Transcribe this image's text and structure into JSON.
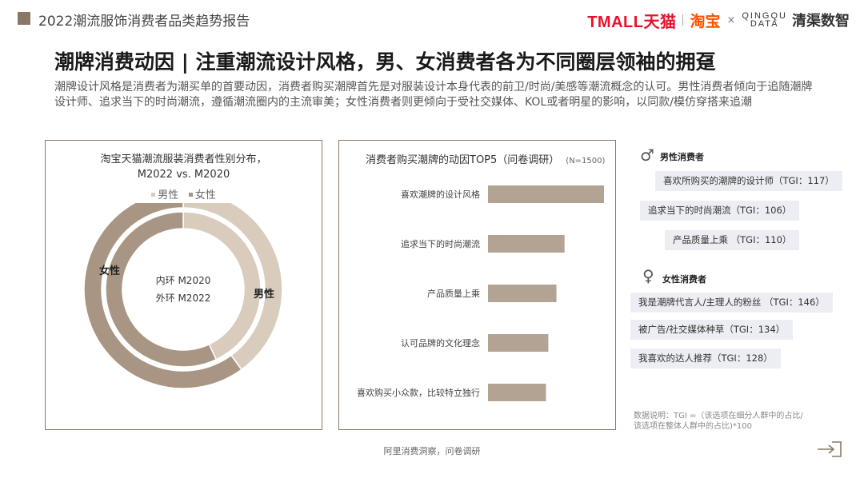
{
  "header": {
    "report_title": "2022潮流服饰消费者品类趋势报告",
    "logos": {
      "tmall": "TMALL天猫",
      "taobao": "淘宝",
      "times": "×",
      "qingqu_line1": "QINGQU",
      "qingqu_line2": "DATA",
      "qingqu_cn": "清渠数智"
    }
  },
  "main": {
    "title": "潮牌消费动因 | 注重潮流设计风格，男、女消费者各为不同圈层领袖的拥趸",
    "description": "潮牌设计风格是消费者为潮买单的首要动因，消费者购买潮牌首先是对服装设计本身代表的前卫/时尚/美感等潮流概念的认可。男性消费者倾向于追随潮牌设计师、追求当下的时尚潮流，遵循潮流圈内的主流审美；女性消费者则更倾向于受社交媒体、KOL或者明星的影响，以同款/模仿穿搭来追潮"
  },
  "chart_data": [
    {
      "type": "pie",
      "title_line1": "淘宝天猫潮流服装消费者性别分布，",
      "title_line2": "M2022 vs. M2020",
      "legend": [
        "男性",
        "女性"
      ],
      "series": [
        {
          "name": "外环 M2022",
          "values": [
            0.4,
            0.6
          ]
        },
        {
          "name": "内环 M2020",
          "values": [
            0.43,
            0.57
          ]
        }
      ],
      "slice_labels": {
        "male": "男性",
        "female": "女性"
      },
      "center_line1": "内环 M2020",
      "center_line2": "外环 M2022",
      "colors": {
        "male": "#d9ccbd",
        "female": "#a99583"
      }
    },
    {
      "type": "bar",
      "title": "消费者购买潮牌的动因TOP5（问卷调研）",
      "note": "(N=1500)",
      "categories": [
        "喜欢潮牌的设计风格",
        "追求当下的时尚潮流",
        "产品质量上乘",
        "认可品牌的文化理念",
        "喜欢购买小众款，比较特立独行"
      ],
      "values": [
        100,
        66,
        59,
        52,
        50
      ],
      "bar_color": "#b3a393"
    }
  ],
  "sidebar": {
    "male_label": "男性消费者",
    "male_tags": [
      "喜欢所购买的潮牌的设计师（TGI：117）",
      "追求当下的时尚潮流（TGI：106）",
      "产品质量上乘 （TGI：110）"
    ],
    "female_label": "女性消费者",
    "female_tags": [
      "我是潮牌代言人/主理人的粉丝 （TGI：146）",
      "被广告/社交媒体种草（TGI：134）",
      "我喜欢的达人推荐（TGI：128）"
    ],
    "male_symbol": "♂",
    "female_symbol": "♀"
  },
  "footer": {
    "note_line1": "数据说明：TGI =（该选项在细分人群中的占比/",
    "note_line2": "该选项在整体人群中的占比)*100",
    "source": "阿里消费洞察，问卷调研"
  }
}
